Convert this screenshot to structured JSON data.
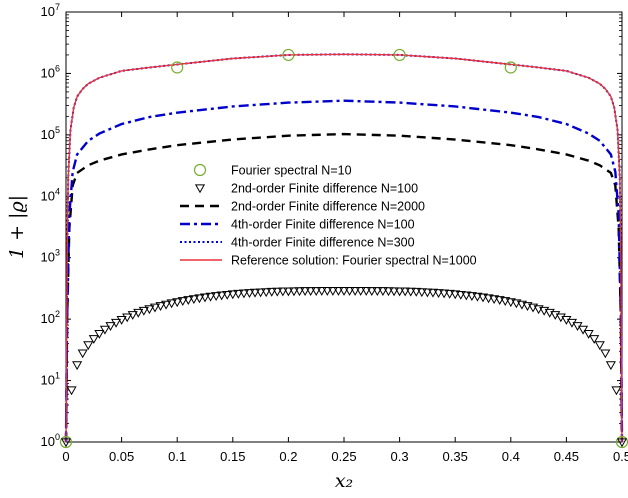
{
  "chart_data": {
    "type": "line",
    "xlabel": "x₂",
    "ylabel": "1 + |ϱ|",
    "xlim": [
      0,
      0.5
    ],
    "ylim": [
      1,
      10000000
    ],
    "yscale": "log",
    "grid": false,
    "legend_position": "center",
    "x_ticks": [
      "0",
      "0.05",
      "0.1",
      "0.15",
      "0.2",
      "0.25",
      "0.3",
      "0.35",
      "0.4",
      "0.45",
      "0.5"
    ],
    "y_ticks": [
      {
        "base": "10",
        "exp": "0"
      },
      {
        "base": "10",
        "exp": "1"
      },
      {
        "base": "10",
        "exp": "2"
      },
      {
        "base": "10",
        "exp": "3"
      },
      {
        "base": "10",
        "exp": "4"
      },
      {
        "base": "10",
        "exp": "5"
      },
      {
        "base": "10",
        "exp": "6"
      },
      {
        "base": "10",
        "exp": "7"
      }
    ],
    "series": [
      {
        "name": "Fourier spectral N=10",
        "style": "circle-marker",
        "color": "#77AC30",
        "x": [
          0,
          0.1,
          0.2,
          0.3,
          0.4,
          0.5
        ],
        "y": [
          1,
          1250000,
          2000000,
          2000000,
          1250000,
          1
        ]
      },
      {
        "name": "2nd-order Finite difference N=100",
        "style": "triangle-down-marker",
        "color": "#000000",
        "x": [
          0,
          0.005,
          0.01,
          0.015,
          0.02,
          0.025,
          0.03,
          0.035,
          0.04,
          0.045,
          0.05,
          0.055,
          0.06,
          0.065,
          0.07,
          0.075,
          0.08,
          0.085,
          0.09,
          0.095,
          0.1,
          0.105,
          0.11,
          0.115,
          0.12,
          0.125,
          0.13,
          0.135,
          0.14,
          0.145,
          0.15,
          0.155,
          0.16,
          0.165,
          0.17,
          0.175,
          0.18,
          0.185,
          0.19,
          0.195,
          0.2,
          0.205,
          0.21,
          0.215,
          0.22,
          0.225,
          0.23,
          0.235,
          0.24,
          0.245,
          0.25,
          0.255,
          0.26,
          0.265,
          0.27,
          0.275,
          0.28,
          0.285,
          0.29,
          0.295,
          0.3,
          0.305,
          0.31,
          0.315,
          0.32,
          0.325,
          0.33,
          0.335,
          0.34,
          0.345,
          0.35,
          0.355,
          0.36,
          0.365,
          0.37,
          0.375,
          0.38,
          0.385,
          0.39,
          0.395,
          0.4,
          0.405,
          0.41,
          0.415,
          0.42,
          0.425,
          0.43,
          0.435,
          0.44,
          0.445,
          0.45,
          0.455,
          0.46,
          0.465,
          0.47,
          0.475,
          0.48,
          0.485,
          0.49,
          0.495,
          0.5
        ],
        "y": [
          1,
          7,
          18,
          28,
          38,
          48,
          58,
          68,
          78,
          88,
          98,
          108,
          118,
          128,
          138,
          147,
          156,
          165,
          174,
          183,
          191,
          199,
          207,
          214,
          221,
          228,
          234,
          240,
          246,
          251,
          256,
          261,
          265,
          269,
          272,
          275,
          278,
          281,
          283,
          285,
          286,
          287,
          288,
          289,
          290,
          290,
          291,
          291,
          291,
          291,
          291,
          291,
          291,
          291,
          291,
          290,
          290,
          289,
          288,
          287,
          286,
          285,
          283,
          281,
          278,
          275,
          272,
          269,
          265,
          261,
          256,
          251,
          246,
          240,
          234,
          228,
          221,
          214,
          207,
          199,
          191,
          183,
          174,
          165,
          156,
          147,
          138,
          128,
          118,
          108,
          98,
          88,
          78,
          68,
          58,
          48,
          38,
          28,
          18,
          7,
          1
        ]
      },
      {
        "name": "2nd-order Finite difference N=2000",
        "style": "dashed",
        "color": "#000000",
        "x": [
          0,
          0.001,
          0.003,
          0.006,
          0.01,
          0.02,
          0.03,
          0.05,
          0.075,
          0.1,
          0.15,
          0.2,
          0.25,
          0.3,
          0.35,
          0.4,
          0.425,
          0.45,
          0.47,
          0.48,
          0.49,
          0.494,
          0.497,
          0.499,
          0.5
        ],
        "y": [
          1,
          100,
          3000,
          15000,
          24000,
          32000,
          38000,
          48000,
          58000,
          68000,
          84000,
          97000,
          103000,
          97000,
          84000,
          68000,
          58000,
          48000,
          38000,
          32000,
          24000,
          15000,
          3000,
          100,
          1
        ]
      },
      {
        "name": "4th-order Finite difference N=100",
        "style": "dash-dot",
        "color": "#0000CC",
        "x": [
          0,
          0.001,
          0.003,
          0.006,
          0.01,
          0.02,
          0.03,
          0.05,
          0.075,
          0.1,
          0.15,
          0.2,
          0.25,
          0.3,
          0.35,
          0.4,
          0.425,
          0.45,
          0.47,
          0.48,
          0.49,
          0.494,
          0.497,
          0.499,
          0.5
        ],
        "y": [
          1,
          100,
          5000,
          25000,
          48000,
          80000,
          105000,
          150000,
          195000,
          230000,
          290000,
          335000,
          360000,
          335000,
          290000,
          230000,
          195000,
          150000,
          105000,
          80000,
          48000,
          25000,
          5000,
          100,
          1
        ]
      },
      {
        "name": "4th-order Finite difference N=300",
        "style": "dotted",
        "color": "#0000CC",
        "x": [
          0,
          0.0005,
          0.001,
          0.002,
          0.004,
          0.007,
          0.01,
          0.015,
          0.02,
          0.03,
          0.05,
          0.075,
          0.1,
          0.15,
          0.2,
          0.25,
          0.3,
          0.35,
          0.4,
          0.425,
          0.45,
          0.47,
          0.48,
          0.485,
          0.49,
          0.493,
          0.496,
          0.498,
          0.499,
          0.4995,
          0.5
        ],
        "y": [
          1,
          20,
          1000,
          20000,
          120000,
          280000,
          420000,
          560000,
          680000,
          850000,
          1100000,
          1250000,
          1400000,
          1750000,
          2000000,
          2050000,
          2000000,
          1750000,
          1400000,
          1250000,
          1100000,
          850000,
          680000,
          560000,
          420000,
          280000,
          120000,
          20000,
          1000,
          20,
          1
        ]
      },
      {
        "name": "Reference solution: Fourier spectral N=1000",
        "style": "solid",
        "color": "#E8323C",
        "x": [
          0,
          0.0005,
          0.001,
          0.002,
          0.004,
          0.007,
          0.01,
          0.015,
          0.02,
          0.03,
          0.05,
          0.075,
          0.1,
          0.15,
          0.2,
          0.25,
          0.3,
          0.35,
          0.4,
          0.425,
          0.45,
          0.47,
          0.48,
          0.485,
          0.49,
          0.493,
          0.496,
          0.498,
          0.499,
          0.4995,
          0.5
        ],
        "y": [
          1,
          20,
          1000,
          20000,
          120000,
          280000,
          420000,
          560000,
          680000,
          850000,
          1100000,
          1250000,
          1400000,
          1750000,
          2000000,
          2050000,
          2000000,
          1750000,
          1400000,
          1250000,
          1100000,
          850000,
          680000,
          560000,
          420000,
          280000,
          120000,
          20000,
          1000,
          20,
          1
        ]
      }
    ]
  }
}
